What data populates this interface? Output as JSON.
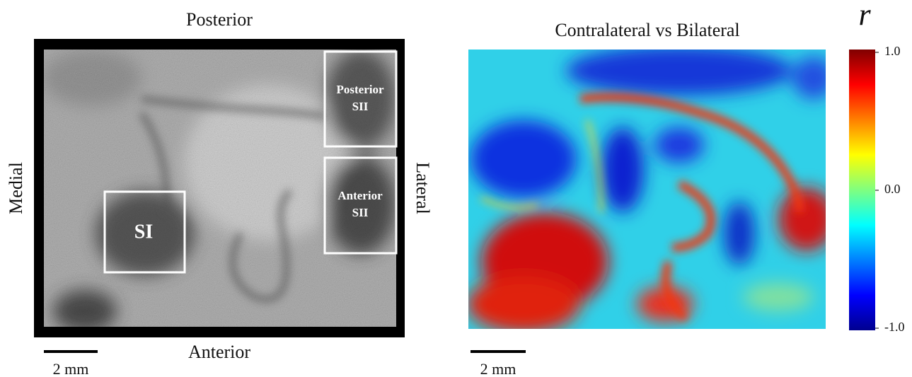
{
  "left_panel": {
    "top_label": "Posterior",
    "bottom_label": "Anterior",
    "left_label": "Medial",
    "right_label": "Lateral",
    "regions": [
      {
        "lines": [
          "Posterior",
          "SII"
        ]
      },
      {
        "lines": [
          "Anterior",
          "SII"
        ]
      },
      {
        "lines": [
          "SI"
        ]
      }
    ],
    "scale_bar": "2 mm"
  },
  "right_panel": {
    "title": "Contralateral vs Bilateral",
    "scale_bar": "2 mm",
    "colorbar": {
      "label": "r",
      "ticks": [
        {
          "value": 1,
          "label": "1.0"
        },
        {
          "value": 0,
          "label": "0.0"
        },
        {
          "value": -1,
          "label": "-1.0"
        }
      ]
    }
  }
}
